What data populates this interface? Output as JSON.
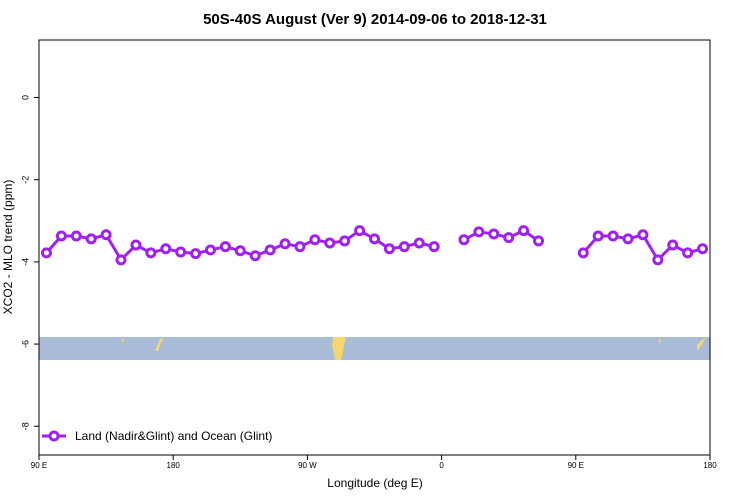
{
  "chart_data": {
    "type": "line",
    "title": "50S-40S August (Ver 9)   2014-09-06 to 2018-12-31",
    "xlabel": "Longitude (deg E)",
    "ylabel": "XCO2 - MLO trend (ppm)",
    "x": [
      95,
      105,
      115,
      125,
      135,
      145,
      155,
      165,
      175,
      185,
      195,
      205,
      215,
      225,
      235,
      245,
      255,
      265,
      275,
      285,
      295,
      305,
      315,
      325,
      335,
      345,
      355,
      365,
      375,
      385,
      395,
      405,
      415,
      425,
      435,
      445,
      455,
      465,
      475,
      485,
      495,
      505,
      515,
      525,
      535
    ],
    "series": [
      {
        "name": "Land (Nadir&Glint) and Ocean (Glint)",
        "color": "#a020f0",
        "values": [
          -3.78,
          -3.37,
          -3.37,
          -3.44,
          -3.34,
          -3.95,
          -3.59,
          -3.78,
          -3.68,
          -3.76,
          -3.8,
          -3.71,
          -3.63,
          -3.73,
          -3.85,
          -3.71,
          -3.56,
          -3.63,
          -3.46,
          -3.54,
          -3.49,
          -3.24,
          -3.44,
          -3.68,
          -3.63,
          -3.54,
          -3.63,
          null,
          -3.46,
          -3.27,
          -3.32,
          -3.41,
          -3.24,
          -3.49,
          null,
          null,
          -3.78,
          -3.37,
          -3.37,
          -3.44,
          -3.34,
          -3.95,
          -3.59,
          -3.78,
          -3.68
        ]
      }
    ],
    "xlim": [
      90,
      540
    ],
    "xticks": [
      {
        "value": 90,
        "label": "90 E"
      },
      {
        "value": 180,
        "label": "180"
      },
      {
        "value": 270,
        "label": "90 W"
      },
      {
        "value": 360,
        "label": "0"
      },
      {
        "value": 450,
        "label": "90 E"
      },
      {
        "value": 540,
        "label": "180"
      }
    ],
    "ylim": [
      -8.7,
      1.4
    ],
    "yticks": [
      0,
      -2,
      -4,
      -6,
      -8
    ],
    "legend": "bottom-left"
  }
}
